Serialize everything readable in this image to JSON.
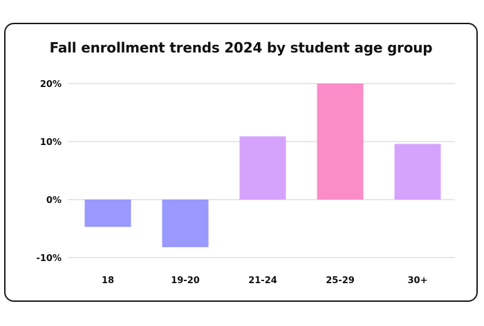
{
  "chart_data": {
    "type": "bar",
    "title": "Fall enrollment trends 2024 by student age group",
    "xlabel": "",
    "ylabel": "",
    "categories": [
      "18",
      "19-20",
      "21-24",
      "25-29",
      "30+"
    ],
    "values": [
      -4.7,
      -8.2,
      10.9,
      20.0,
      9.6
    ],
    "ylim": [
      -10,
      20
    ],
    "yticks": [
      20,
      10,
      0,
      -10
    ],
    "ytick_labels": [
      "20%",
      "10%",
      "0%",
      "-10%"
    ],
    "bar_colors": [
      "#9999ff",
      "#9999ff",
      "#d6a3fc",
      "#fa8cc8",
      "#d6a3fc"
    ],
    "grid": true,
    "legend": "none"
  }
}
